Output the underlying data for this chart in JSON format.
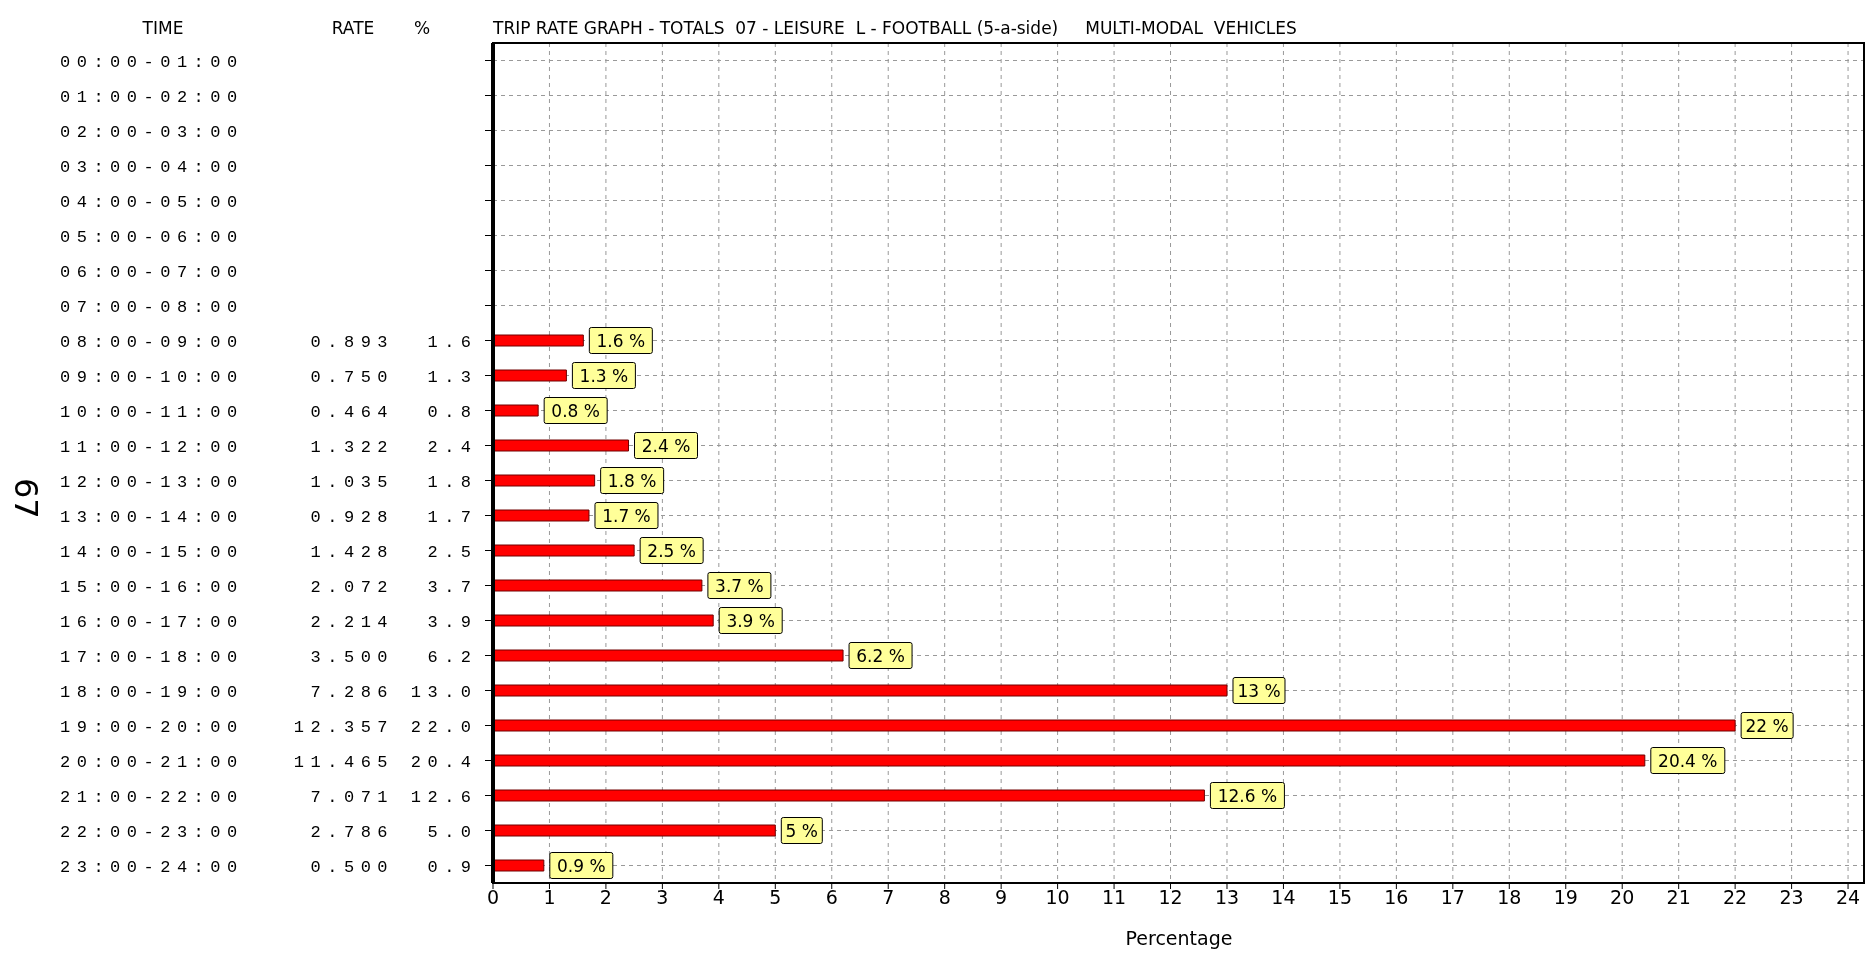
{
  "chart_data": {
    "type": "bar",
    "orientation": "horizontal",
    "title": "TRIP RATE GRAPH - TOTALS  07 - LEISURE  L - FOOTBALL (5-a-side)     MULTI-MODAL  VEHICLES",
    "xlabel": "Percentage",
    "annotations": [
      "TIME",
      "RATE",
      "%",
      "67"
    ],
    "categories": [
      "00:00-01:00",
      "01:00-02:00",
      "02:00-03:00",
      "03:00-04:00",
      "04:00-05:00",
      "05:00-06:00",
      "06:00-07:00",
      "07:00-08:00",
      "08:00-09:00    0.893  1.6",
      "09:00-10:00    0.750  1.3",
      "10:00-11:00    0.464  0.8",
      "11:00-12:00    1.322  2.4",
      "12:00-13:00    1.035  1.8",
      "13:00-14:00    0.928  1.7",
      "14:00-15:00    1.428  2.5",
      "15:00-16:00    2.072  3.7",
      "16:00-17:00    2.214  3.9",
      "17:00-18:00    3.500  6.2",
      "18:00-19:00    7.286 13.0",
      "19:00-20:00   12.357 22.0",
      "20:00-21:00   11.465 20.4",
      "21:00-22:00    7.071 12.6",
      "22:00-23:00    2.786  5.0",
      "23:00-24:00    0.500  0.9"
    ],
    "series": [
      {
        "color": "#ff0000",
        "values": [
          null,
          null,
          null,
          null,
          null,
          null,
          null,
          null,
          1.6,
          1.3,
          0.8,
          2.4,
          1.8,
          1.7,
          2.5,
          3.7,
          3.9,
          6.2,
          13.0,
          22.0,
          20.4,
          12.6,
          5.0,
          0.9
        ],
        "value_labels": [
          null,
          null,
          null,
          null,
          null,
          null,
          null,
          null,
          "1.6 %",
          "1.3 %",
          "0.8 %",
          "2.4 %",
          "1.8 %",
          "1.7 %",
          "2.5 %",
          "3.7 %",
          "3.9 %",
          "6.2 %",
          "13 %",
          "22 %",
          "20.4 %",
          "12.6 %",
          "5 %",
          "0.9 %"
        ]
      }
    ],
    "xlim": [
      0,
      24.3
    ],
    "xticks": [
      0,
      1,
      2,
      3,
      4,
      5,
      6,
      7,
      8,
      9,
      10,
      11,
      12,
      13,
      14,
      15,
      16,
      17,
      18,
      19,
      20,
      21,
      22,
      23,
      24
    ],
    "grid": true
  }
}
